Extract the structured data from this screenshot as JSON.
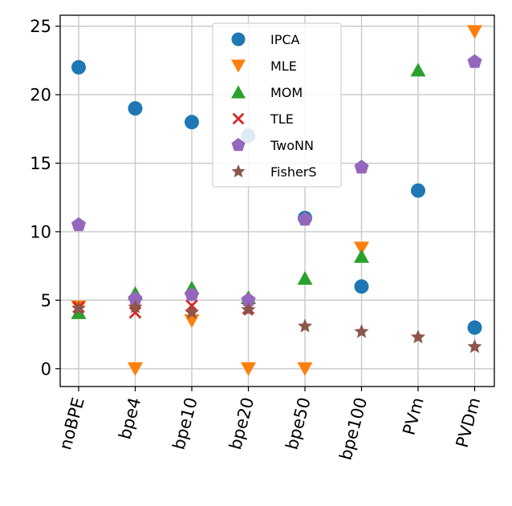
{
  "chart_data": {
    "type": "scatter",
    "categories": [
      "noBPE",
      "bpe4",
      "bpe10",
      "bpe20",
      "bpe50",
      "bpe100",
      "PVm",
      "PVDm"
    ],
    "ylim": [
      -1.3,
      25.8
    ],
    "yticks": [
      0,
      5,
      10,
      15,
      20,
      25
    ],
    "grid": true,
    "legend": {
      "placement": "top-center"
    },
    "series": [
      {
        "name": "IPCA",
        "marker": "circle",
        "color": "#1f77b4",
        "values": [
          22,
          19,
          18,
          17,
          11,
          6,
          13,
          3
        ]
      },
      {
        "name": "MLE",
        "marker": "triangle-down",
        "color": "#ff7f0e",
        "values": [
          4.5,
          0,
          3.5,
          0,
          0,
          8.8,
          null,
          24.6
        ]
      },
      {
        "name": "MOM",
        "marker": "triangle-up",
        "color": "#2ca02c",
        "values": [
          4.1,
          5.5,
          5.9,
          5.2,
          6.6,
          8.2,
          21.8,
          null
        ]
      },
      {
        "name": "TLE",
        "marker": "x",
        "color": "#d62728",
        "values": [
          4.5,
          4.1,
          4.6,
          4.4,
          null,
          null,
          null,
          null
        ]
      },
      {
        "name": "TwoNN",
        "marker": "pentagon",
        "color": "#9467bd",
        "values": [
          10.5,
          5.1,
          5.4,
          5.0,
          10.9,
          14.7,
          null,
          22.4
        ]
      },
      {
        "name": "FisherS",
        "marker": "star",
        "color": "#8c564b",
        "values": [
          4.4,
          4.5,
          4.1,
          4.3,
          3.1,
          2.7,
          2.3,
          1.6
        ]
      }
    ]
  }
}
